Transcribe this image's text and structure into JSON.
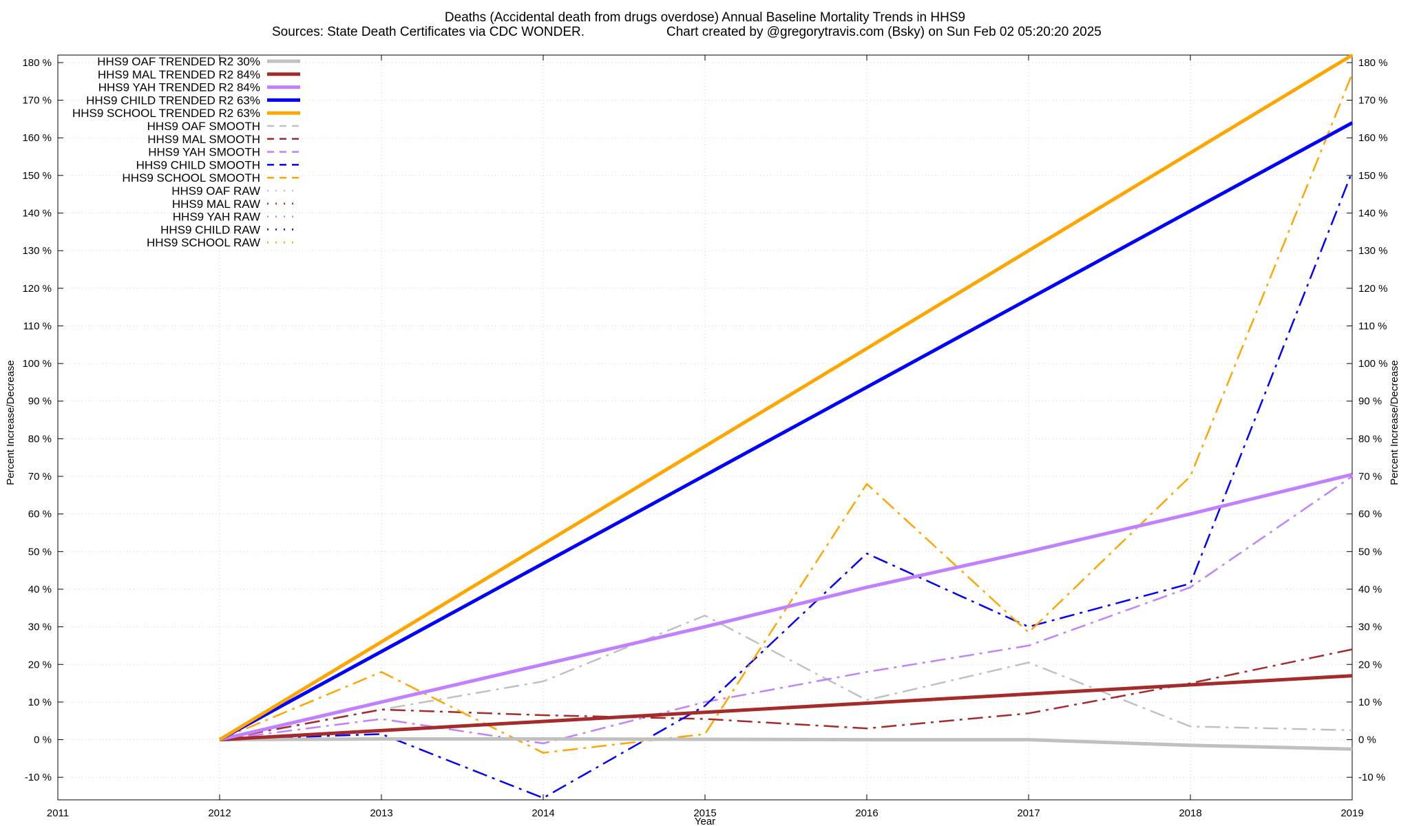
{
  "chart_data": {
    "type": "line",
    "title": "Deaths (Accidental death from drugs overdose)  Annual Baseline Mortality Trends in HHS9",
    "subtitle_left": "Sources: State Death Certificates via CDC WONDER.",
    "subtitle_right": "Chart created by @gregorytravis.com (Bsky) on Sun Feb 02 05:20:20 2025",
    "xlabel": "Year",
    "ylabel": "Percent Increase/Decrease",
    "y2label": "Percent Increase/Decrease",
    "xlim": [
      2011,
      2019
    ],
    "ylim": [
      -16,
      182
    ],
    "x_ticks": [
      "2011",
      "2012",
      "2013",
      "2014",
      "2015",
      "2016",
      "2017",
      "2018",
      "2019"
    ],
    "y_ticks": [
      "-10 %",
      "0 %",
      "10 %",
      "20 %",
      "30 %",
      "40 %",
      "50 %",
      "60 %",
      "70 %",
      "80 %",
      "90 %",
      "100 %",
      "110 %",
      "120 %",
      "130 %",
      "140 %",
      "150 %",
      "160 %",
      "170 %",
      "180 %"
    ],
    "y_tick_values": [
      -10,
      0,
      10,
      20,
      30,
      40,
      50,
      60,
      70,
      80,
      90,
      100,
      110,
      120,
      130,
      140,
      150,
      160,
      170,
      180
    ],
    "grid": true,
    "legend_position": "top-left",
    "series": [
      {
        "name": "HHS9 OAF TRENDED R2  30%",
        "style": "trend",
        "color": "#c0c0c0",
        "x": [
          2012,
          2013,
          2014,
          2015,
          2016,
          2017,
          2018,
          2019
        ],
        "values": [
          0,
          0.2,
          0.2,
          0.1,
          0,
          0,
          -1.5,
          -2.5
        ]
      },
      {
        "name": "HHS9 MAL TRENDED R2  84%",
        "style": "trend",
        "color": "#a52a2a",
        "x": [
          2012,
          2019
        ],
        "values": [
          0,
          17
        ]
      },
      {
        "name": "HHS9 YAH TRENDED R2  84%",
        "style": "trend",
        "color": "#c080ff",
        "x": [
          2012,
          2013,
          2014,
          2015,
          2016,
          2017,
          2018,
          2019
        ],
        "values": [
          0,
          10,
          20,
          30,
          40.5,
          50,
          60,
          70.5
        ]
      },
      {
        "name": "HHS9 CHILD TRENDED R2  63%",
        "style": "trend",
        "color": "#0000ff",
        "x": [
          2012,
          2019
        ],
        "values": [
          0,
          164
        ]
      },
      {
        "name": "HHS9 SCHOOL TRENDED R2  63%",
        "style": "trend",
        "color": "#ffa500",
        "x": [
          2012,
          2019
        ],
        "values": [
          0,
          182
        ]
      },
      {
        "name": "HHS9 OAF SMOOTH",
        "style": "smooth",
        "color": "#c0c0c0",
        "x": [
          2012,
          2013,
          2014,
          2015,
          2016,
          2017,
          2018,
          2019
        ],
        "values": [
          0,
          8,
          15.5,
          33,
          10.5,
          20.5,
          3.5,
          2.5
        ]
      },
      {
        "name": "HHS9 MAL SMOOTH",
        "style": "smooth",
        "color": "#a52a2a",
        "x": [
          2012,
          2013,
          2014,
          2015,
          2016,
          2017,
          2018,
          2019
        ],
        "values": [
          0,
          8,
          6.5,
          5.5,
          3,
          7,
          15,
          24
        ]
      },
      {
        "name": "HHS9 YAH SMOOTH",
        "style": "smooth",
        "color": "#c080ff",
        "x": [
          2012,
          2013,
          2014,
          2015,
          2016,
          2017,
          2018,
          2019
        ],
        "values": [
          0,
          5.5,
          -1,
          10,
          18,
          25,
          40.5,
          70
        ]
      },
      {
        "name": "HHS9 CHILD SMOOTH",
        "style": "smooth",
        "color": "#0000ff",
        "x": [
          2012,
          2013,
          2014,
          2015,
          2016,
          2017,
          2018,
          2019
        ],
        "values": [
          0,
          1.5,
          -15.5,
          9,
          49.5,
          30,
          41.5,
          151
        ]
      },
      {
        "name": "HHS9 SCHOOL SMOOTH",
        "style": "smooth",
        "color": "#ffa500",
        "x": [
          2012,
          2013,
          2014,
          2015,
          2016,
          2017,
          2018,
          2019
        ],
        "values": [
          0,
          18,
          -3.5,
          1.5,
          68,
          28.5,
          70,
          177
        ]
      },
      {
        "name": "HHS9 OAF RAW",
        "style": "raw",
        "color": "#c0c0c0",
        "x": [],
        "values": []
      },
      {
        "name": "HHS9 MAL RAW",
        "style": "raw",
        "color": "#a52a2a",
        "x": [],
        "values": []
      },
      {
        "name": "HHS9 YAH RAW",
        "style": "raw",
        "color": "#c080ff",
        "x": [],
        "values": []
      },
      {
        "name": "HHS9 CHILD RAW",
        "style": "raw",
        "color": "#0000ff",
        "x": [],
        "values": []
      },
      {
        "name": "HHS9 SCHOOL RAW",
        "style": "raw",
        "color": "#ffa500",
        "x": [],
        "values": []
      }
    ]
  }
}
